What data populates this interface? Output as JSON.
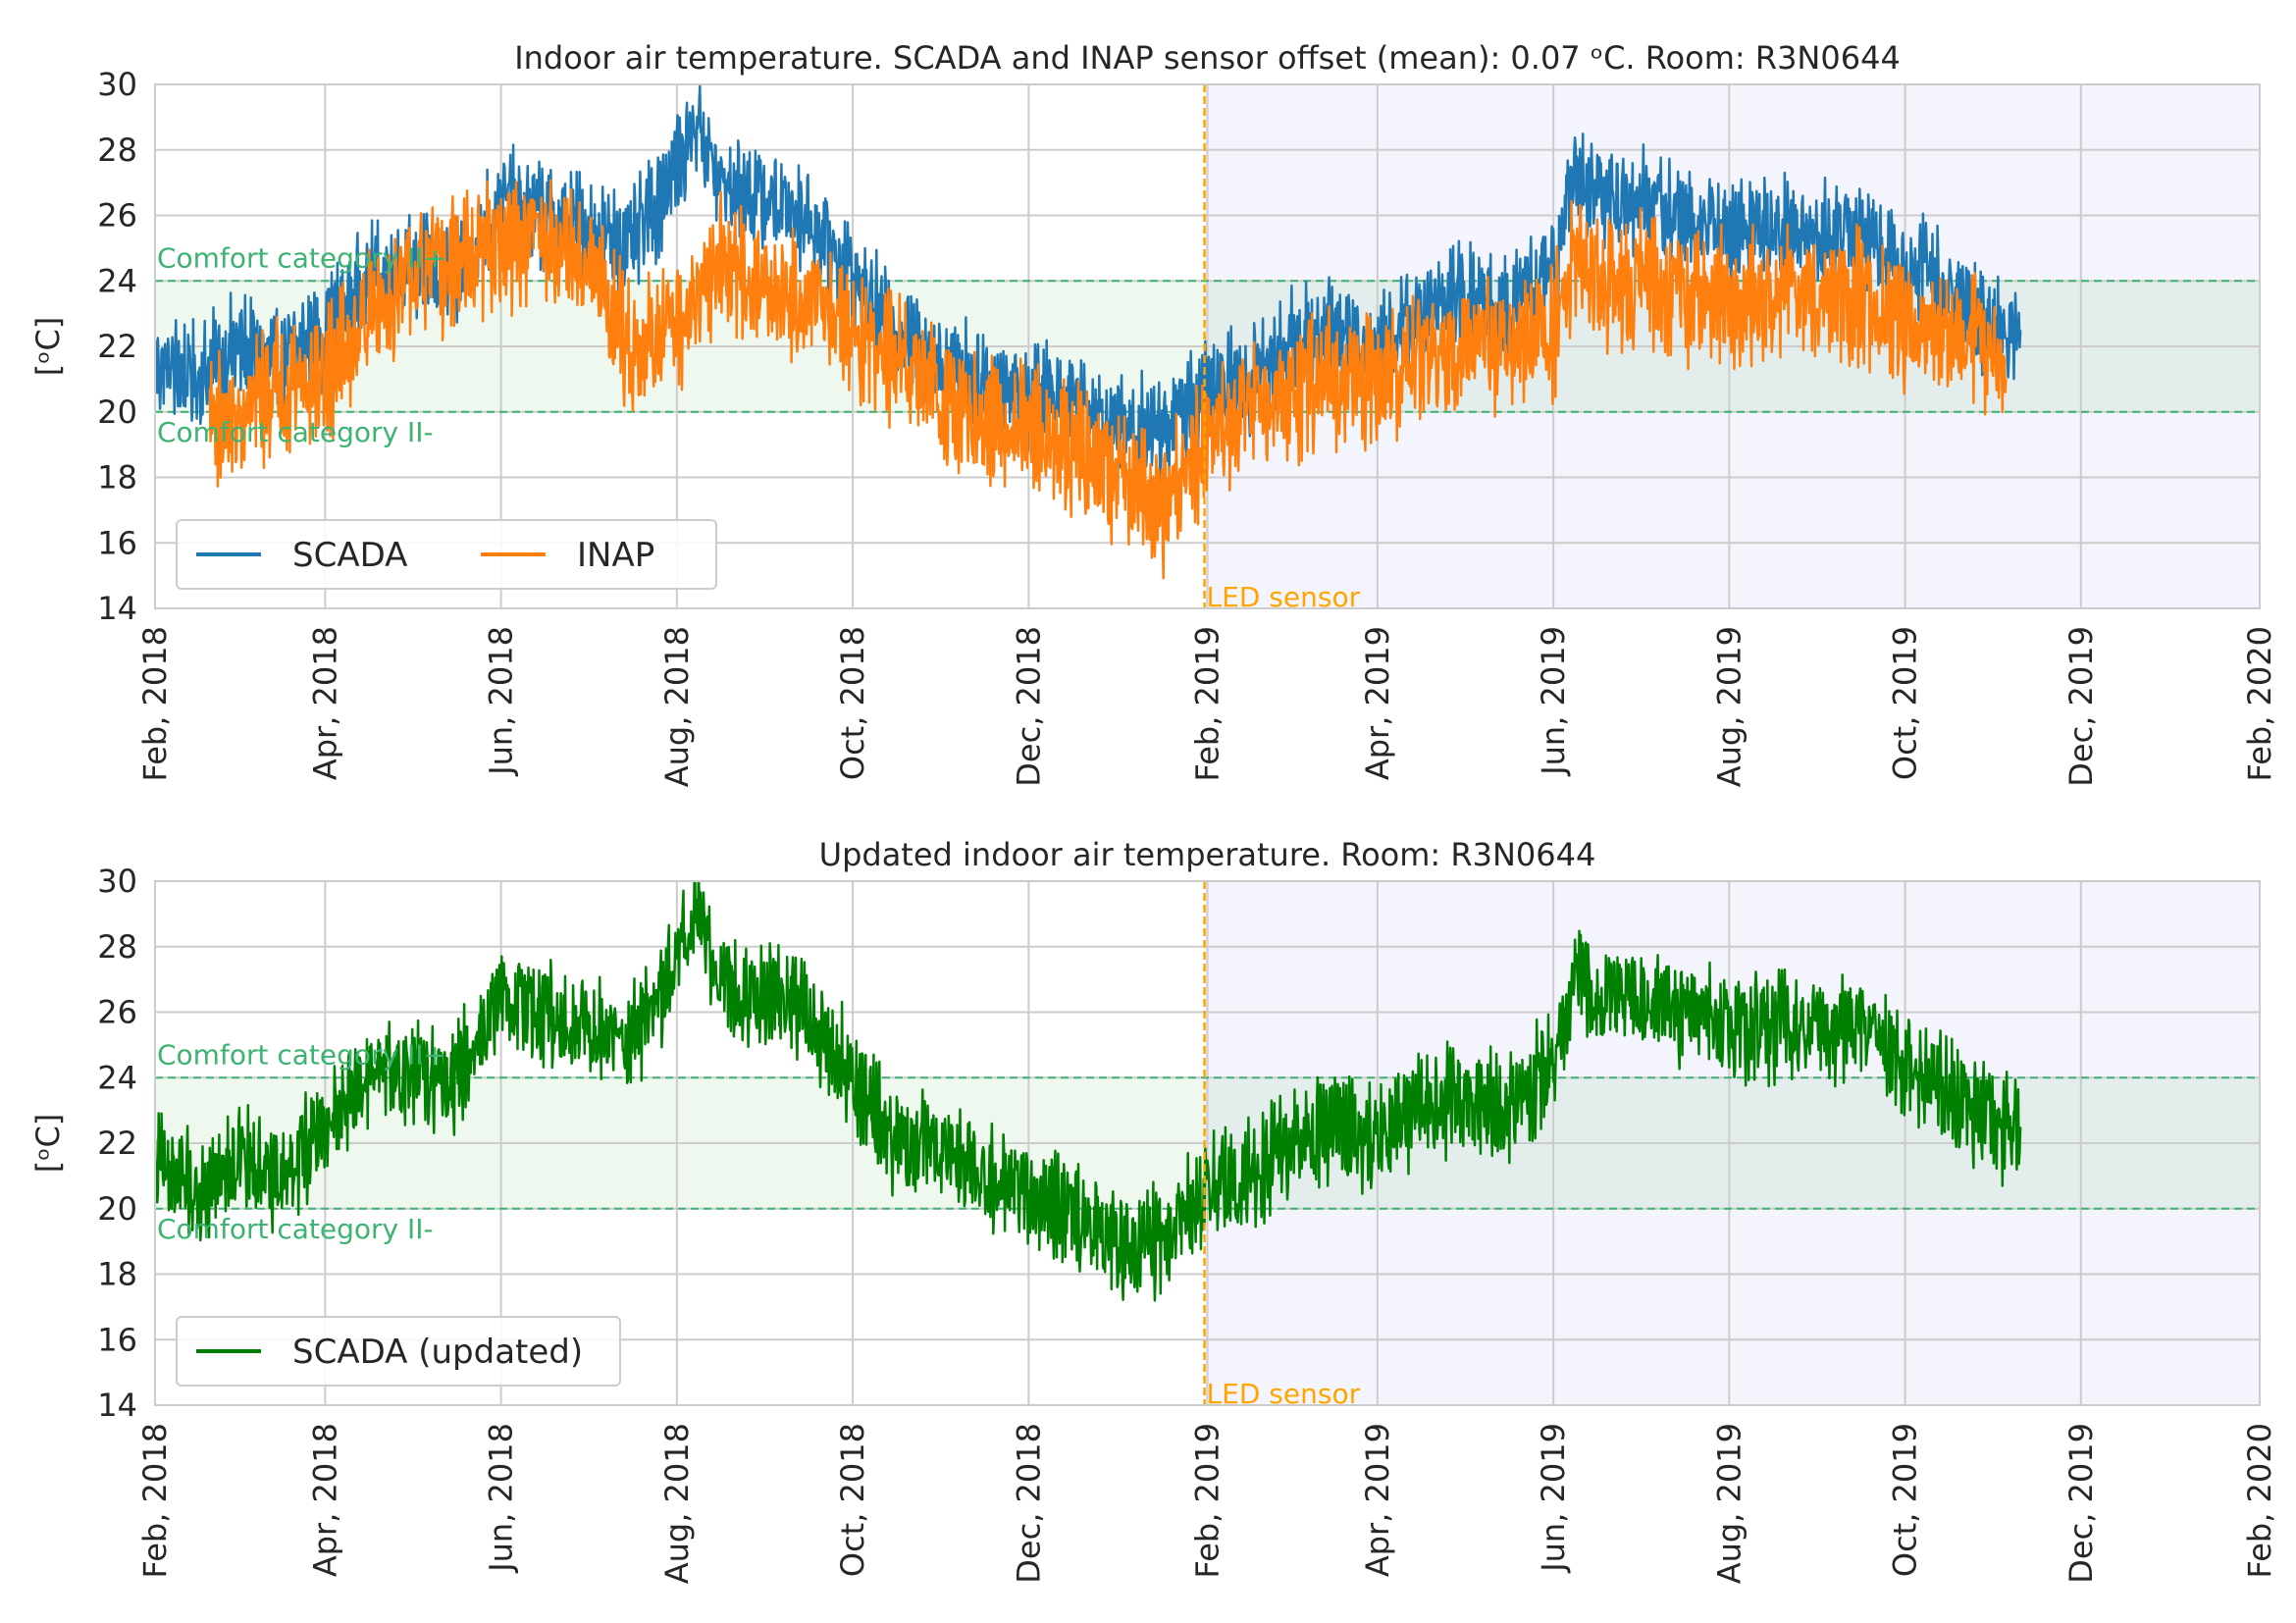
{
  "chart_data": [
    {
      "type": "line",
      "title": "Indoor air temperature. SCADA and INAP sensor offset (mean): 0.07 ᵒC. Room: R3N0644",
      "ylabel": "[ᵒC]",
      "xlabel": "",
      "xlim": [
        "2018-02-01",
        "2020-02-01"
      ],
      "ylim": [
        14,
        30
      ],
      "x_ticks": [
        "Feb, 2018",
        "Apr, 2018",
        "Jun, 2018",
        "Aug, 2018",
        "Oct, 2018",
        "Dec, 2018",
        "Feb, 2019",
        "Apr, 2019",
        "Jun, 2019",
        "Aug, 2019",
        "Oct, 2019",
        "Dec, 2019",
        "Feb, 2020"
      ],
      "y_ticks": [
        "14",
        "16",
        "18",
        "20",
        "22",
        "24",
        "26",
        "28",
        "30"
      ],
      "grid": true,
      "legend": {
        "placement": "lower-left",
        "columns": 2
      },
      "comfort_band": {
        "low": 20,
        "high": 24,
        "label_high": "Comfort category II+",
        "label_low": "Comfort category II-"
      },
      "led_sensor": {
        "date": "2019-01-31",
        "label": "LED sensor"
      },
      "shaded_after": "2019-01-31",
      "series": [
        {
          "name": "SCADA",
          "color": "#1f77b4",
          "x": [
            "2018-02-01",
            "2018-02-15",
            "2018-03-01",
            "2018-03-15",
            "2018-04-01",
            "2018-04-15",
            "2018-05-01",
            "2018-05-15",
            "2018-06-01",
            "2018-06-15",
            "2018-07-01",
            "2018-07-15",
            "2018-08-01",
            "2018-08-08",
            "2018-08-15",
            "2018-09-01",
            "2018-09-15",
            "2018-10-01",
            "2018-10-15",
            "2018-11-01",
            "2018-11-15",
            "2018-12-01",
            "2018-12-15",
            "2019-01-01",
            "2019-01-15",
            "2019-01-31",
            "2019-02-15",
            "2019-03-01",
            "2019-03-15",
            "2019-04-01",
            "2019-04-15",
            "2019-05-01",
            "2019-05-15",
            "2019-06-01",
            "2019-06-08",
            "2019-06-15",
            "2019-07-01",
            "2019-07-15",
            "2019-08-01",
            "2019-08-15",
            "2019-09-01",
            "2019-09-15",
            "2019-10-01",
            "2019-10-15",
            "2019-11-01",
            "2019-11-10"
          ],
          "y": [
            21.5,
            21.0,
            22.0,
            21.5,
            22.5,
            24.0,
            24.5,
            24.0,
            26.5,
            26.0,
            25.5,
            25.0,
            27.5,
            29.0,
            27.0,
            26.5,
            26.0,
            24.0,
            22.5,
            21.5,
            21.0,
            20.5,
            20.5,
            19.5,
            19.5,
            20.5,
            21.0,
            22.0,
            22.5,
            22.0,
            23.0,
            23.5,
            23.0,
            24.5,
            27.5,
            26.5,
            26.5,
            26.0,
            25.5,
            25.5,
            25.5,
            25.5,
            24.5,
            24.0,
            22.5,
            22.5
          ]
        },
        {
          "name": "INAP",
          "color": "#ff7f0e",
          "x": [
            "2018-02-20",
            "2018-03-01",
            "2018-03-15",
            "2018-04-01",
            "2018-04-15",
            "2018-05-01",
            "2018-05-15",
            "2018-06-01",
            "2018-06-15",
            "2018-07-01",
            "2018-07-15",
            "2018-08-01",
            "2018-08-15",
            "2018-09-01",
            "2018-09-15",
            "2018-10-01",
            "2018-10-15",
            "2018-11-01",
            "2018-11-15",
            "2018-12-01",
            "2018-12-15",
            "2019-01-01",
            "2019-01-15",
            "2019-01-31",
            "2019-02-15",
            "2019-03-01",
            "2019-03-15",
            "2019-04-01",
            "2019-04-15",
            "2019-05-01",
            "2019-05-15",
            "2019-06-01",
            "2019-06-08",
            "2019-06-15",
            "2019-07-01",
            "2019-07-15",
            "2019-08-01",
            "2019-08-15",
            "2019-09-01",
            "2019-09-15",
            "2019-10-01",
            "2019-10-15",
            "2019-11-01",
            "2019-11-05"
          ],
          "y": [
            20.0,
            19.5,
            21.0,
            21.0,
            23.0,
            24.0,
            24.5,
            25.0,
            25.5,
            24.5,
            22.0,
            22.5,
            24.5,
            24.0,
            23.5,
            22.5,
            21.5,
            20.5,
            19.5,
            19.5,
            19.0,
            18.0,
            17.0,
            19.0,
            20.0,
            20.5,
            21.0,
            21.0,
            21.5,
            22.0,
            22.0,
            22.5,
            25.0,
            24.0,
            24.0,
            23.5,
            23.5,
            23.5,
            23.5,
            23.5,
            22.5,
            22.5,
            22.0,
            21.0
          ]
        }
      ]
    },
    {
      "type": "line",
      "title": "Updated indoor air temperature. Room: R3N0644",
      "ylabel": "[ᵒC]",
      "xlabel": "",
      "xlim": [
        "2018-02-01",
        "2020-02-01"
      ],
      "ylim": [
        14,
        30
      ],
      "x_ticks": [
        "Feb, 2018",
        "Apr, 2018",
        "Jun, 2018",
        "Aug, 2018",
        "Oct, 2018",
        "Dec, 2018",
        "Feb, 2019",
        "Apr, 2019",
        "Jun, 2019",
        "Aug, 2019",
        "Oct, 2019",
        "Dec, 2019",
        "Feb, 2020"
      ],
      "y_ticks": [
        "14",
        "16",
        "18",
        "20",
        "22",
        "24",
        "26",
        "28",
        "30"
      ],
      "grid": true,
      "legend": {
        "placement": "lower-left",
        "columns": 1
      },
      "comfort_band": {
        "low": 20,
        "high": 24,
        "label_high": "Comfort category II+",
        "label_low": "Comfort category II-"
      },
      "led_sensor": {
        "date": "2019-01-31",
        "label": "LED sensor"
      },
      "shaded_after": "2019-01-31",
      "series": [
        {
          "name": "SCADA (updated)",
          "color": "#008000",
          "x": [
            "2018-02-01",
            "2018-02-15",
            "2018-03-01",
            "2018-03-15",
            "2018-04-01",
            "2018-04-15",
            "2018-05-01",
            "2018-05-15",
            "2018-06-01",
            "2018-06-15",
            "2018-07-01",
            "2018-07-15",
            "2018-08-01",
            "2018-08-08",
            "2018-08-15",
            "2018-09-01",
            "2018-09-15",
            "2018-10-01",
            "2018-10-15",
            "2018-11-01",
            "2018-11-15",
            "2018-12-01",
            "2018-12-15",
            "2019-01-01",
            "2019-01-15",
            "2019-01-31",
            "2019-02-15",
            "2019-03-01",
            "2019-03-15",
            "2019-04-01",
            "2019-04-15",
            "2019-05-01",
            "2019-05-15",
            "2019-06-01",
            "2019-06-08",
            "2019-06-15",
            "2019-07-01",
            "2019-07-15",
            "2019-08-01",
            "2019-08-15",
            "2019-09-01",
            "2019-09-15",
            "2019-10-01",
            "2019-10-15",
            "2019-11-01",
            "2019-11-10"
          ],
          "y": [
            21.5,
            20.5,
            21.5,
            21.0,
            22.5,
            24.0,
            24.0,
            24.0,
            26.5,
            26.0,
            25.5,
            25.0,
            27.5,
            29.0,
            27.0,
            26.5,
            26.0,
            24.0,
            22.0,
            22.0,
            21.0,
            20.5,
            20.0,
            19.0,
            19.0,
            20.5,
            21.0,
            22.0,
            22.5,
            22.0,
            23.0,
            23.5,
            23.0,
            24.5,
            27.5,
            26.5,
            26.5,
            26.0,
            25.5,
            25.5,
            25.5,
            25.5,
            24.5,
            23.5,
            22.5,
            22.5
          ]
        }
      ]
    }
  ]
}
